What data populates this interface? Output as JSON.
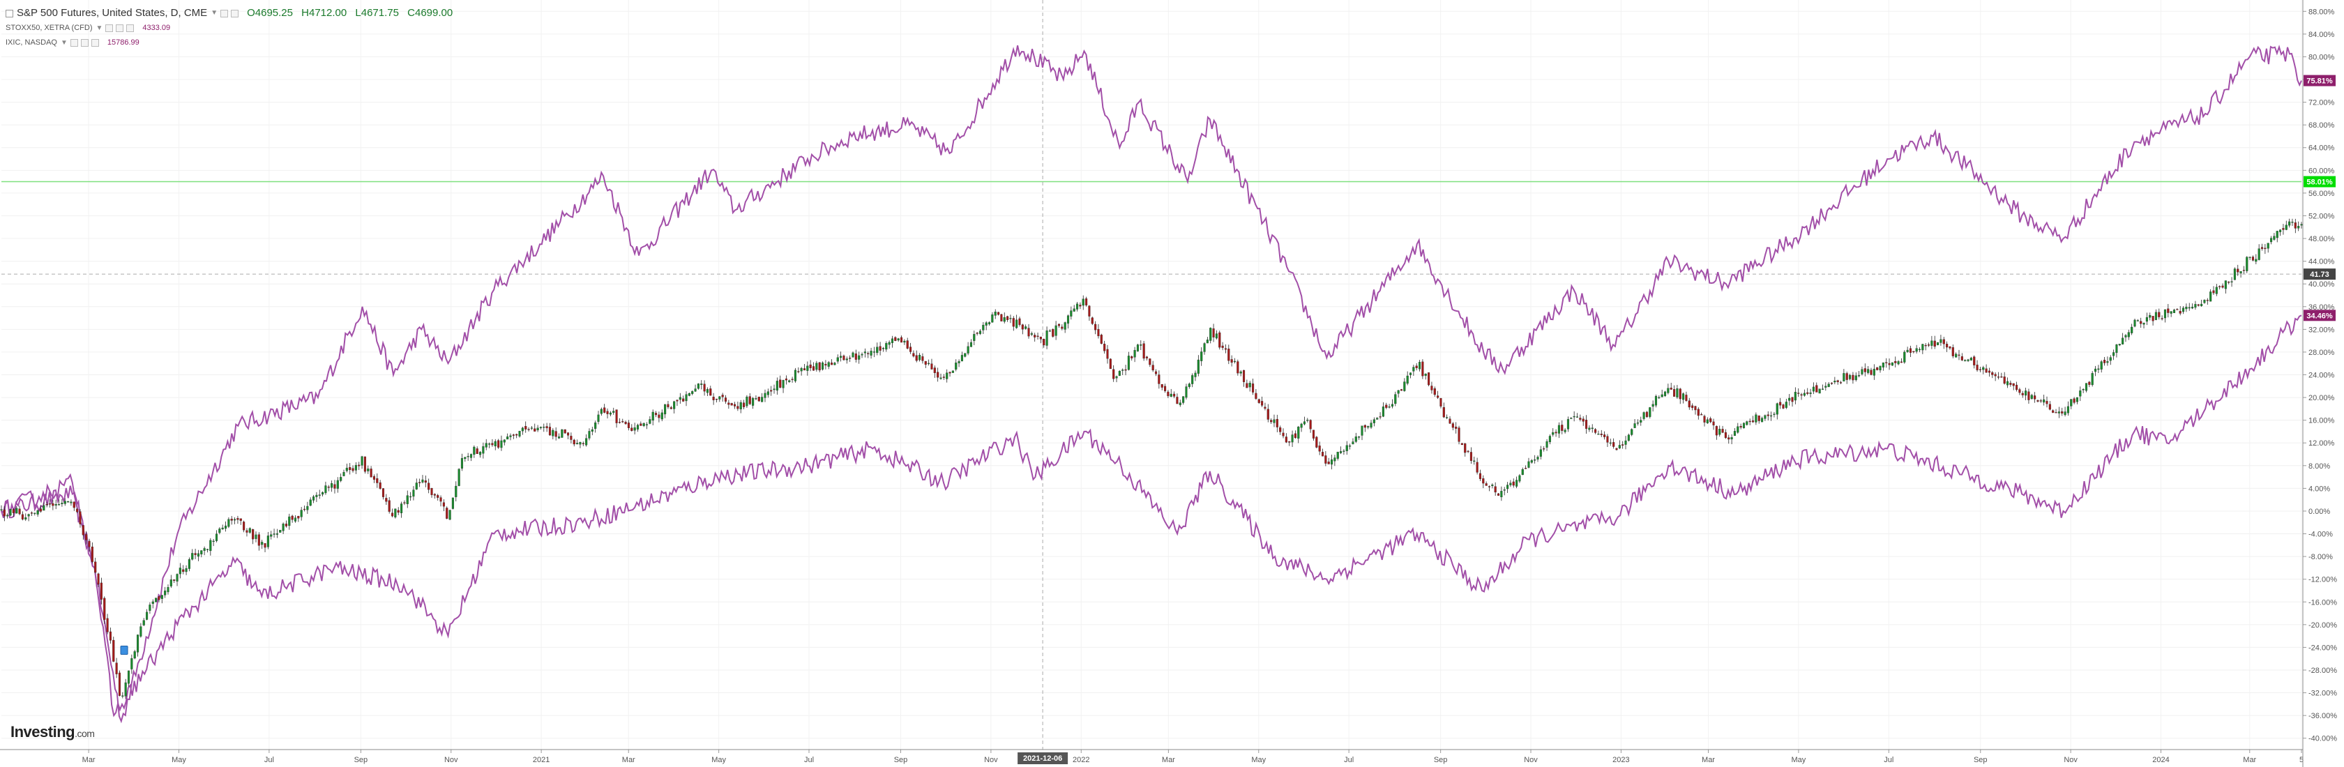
{
  "legend": {
    "main": {
      "title": "S&P 500 Futures, United States, D, CME",
      "open": "O4695.25",
      "high": "H4712.00",
      "low": "L4671.75",
      "close": "C4699.00"
    },
    "compare": [
      {
        "name": "STOXX50, XETRA (CFD)",
        "value": "4333.09"
      },
      {
        "name": "IXIC, NASDAQ",
        "value": "15786.99"
      }
    ]
  },
  "logo": {
    "text": "Investing",
    "suffix": ".com"
  },
  "colors": {
    "up": "#1a8a2e",
    "down": "#a31a1a",
    "compare": "#a24fa8",
    "green_line": "#7fe07f",
    "badge_main": "#00dd00",
    "badge_nasdaq": "#8e1f6b",
    "badge_stoxx": "#8e1f6b",
    "badge_price": "#444444",
    "crosshair_badge": "#555555"
  },
  "chart_data": {
    "type": "line",
    "y_axis": {
      "unit": "%",
      "min": -42,
      "max": 90,
      "tick_labels": [
        "88.00%",
        "84.00%",
        "80.00%",
        "76.00%",
        "72.00%",
        "68.00%",
        "64.00%",
        "60.00%",
        "56.00%",
        "52.00%",
        "48.00%",
        "44.00%",
        "40.00%",
        "36.00%",
        "32.00%",
        "28.00%",
        "24.00%",
        "20.00%",
        "16.00%",
        "12.00%",
        "8.00%",
        "4.00%",
        "0.00%",
        "-4.00%",
        "-8.00%",
        "-12.00%",
        "-16.00%",
        "-20.00%",
        "-24.00%",
        "-28.00%",
        "-32.00%",
        "-36.00%",
        "-40.00%"
      ],
      "tick_values": [
        88,
        84,
        80,
        76,
        72,
        68,
        64,
        60,
        56,
        52,
        48,
        44,
        40,
        36,
        32,
        28,
        24,
        20,
        16,
        12,
        8,
        4,
        0,
        -4,
        -8,
        -12,
        -16,
        -20,
        -24,
        -28,
        -32,
        -36,
        -40
      ]
    },
    "x_axis": {
      "start": "2020-01-02",
      "end": "2024-04-05",
      "tick_labels": [
        "Mar",
        "May",
        "Jul",
        "Sep",
        "Nov",
        "2021",
        "Mar",
        "May",
        "Jul",
        "Sep",
        "Nov",
        "2022",
        "Mar",
        "May",
        "Jul",
        "Sep",
        "Nov",
        "2023",
        "Mar",
        "May",
        "Jul",
        "Sep",
        "Nov",
        "2024",
        "Mar",
        "5"
      ],
      "tick_dates": [
        "2020-03-01",
        "2020-05-01",
        "2020-07-01",
        "2020-09-01",
        "2020-11-01",
        "2021-01-01",
        "2021-03-01",
        "2021-05-01",
        "2021-07-01",
        "2021-09-01",
        "2021-11-01",
        "2022-01-01",
        "2022-03-01",
        "2022-05-01",
        "2022-07-01",
        "2022-09-01",
        "2022-11-01",
        "2023-01-01",
        "2023-03-01",
        "2023-05-01",
        "2023-07-01",
        "2023-09-01",
        "2023-11-01",
        "2024-01-01",
        "2024-03-01",
        "2024-04-05"
      ]
    },
    "badges": [
      {
        "label": "75.81%",
        "value": 75.81
      },
      {
        "label": "58.01%",
        "value": 58.01
      },
      {
        "label": "41.73",
        "value": 41.73
      },
      {
        "label": "34.46%",
        "value": 34.46
      }
    ],
    "crosshair": {
      "x_label": "2021-12-06",
      "x": "2021-12-06",
      "y": 41.73
    },
    "horizontal_line": {
      "value": 58.01
    },
    "grid": "on",
    "series": [
      {
        "style": "candlestick",
        "key_points": [
          [
            "2020-01-02",
            0
          ],
          [
            "2020-01-20",
            -1
          ],
          [
            "2020-02-19",
            2
          ],
          [
            "2020-03-05",
            -10
          ],
          [
            "2020-03-23",
            -33
          ],
          [
            "2020-04-08",
            -18
          ],
          [
            "2020-04-30",
            -11
          ],
          [
            "2020-06-08",
            -1
          ],
          [
            "2020-06-26",
            -6
          ],
          [
            "2020-07-31",
            2
          ],
          [
            "2020-09-02",
            9
          ],
          [
            "2020-09-23",
            -1
          ],
          [
            "2020-10-12",
            6
          ],
          [
            "2020-10-30",
            -1
          ],
          [
            "2020-11-09",
            10
          ],
          [
            "2020-12-31",
            15
          ],
          [
            "2021-01-29",
            12
          ],
          [
            "2021-02-12",
            18
          ],
          [
            "2021-03-04",
            14
          ],
          [
            "2021-04-16",
            22
          ],
          [
            "2021-05-12",
            18
          ],
          [
            "2021-06-30",
            25
          ],
          [
            "2021-08-31",
            30
          ],
          [
            "2021-09-30",
            23
          ],
          [
            "2021-11-04",
            35
          ],
          [
            "2021-12-01",
            31
          ],
          [
            "2021-12-06",
            30
          ],
          [
            "2022-01-03",
            37
          ],
          [
            "2022-01-24",
            23
          ],
          [
            "2022-02-09",
            29
          ],
          [
            "2022-03-08",
            18
          ],
          [
            "2022-03-29",
            32
          ],
          [
            "2022-05-20",
            12
          ],
          [
            "2022-06-02",
            16
          ],
          [
            "2022-06-16",
            8
          ],
          [
            "2022-07-29",
            19
          ],
          [
            "2022-08-16",
            26
          ],
          [
            "2022-09-30",
            5
          ],
          [
            "2022-10-13",
            3
          ],
          [
            "2022-11-30",
            17
          ],
          [
            "2022-12-28",
            11
          ],
          [
            "2023-02-02",
            22
          ],
          [
            "2023-03-13",
            13
          ],
          [
            "2023-04-28",
            20
          ],
          [
            "2023-06-30",
            26
          ],
          [
            "2023-07-31",
            30
          ],
          [
            "2023-09-29",
            21
          ],
          [
            "2023-10-27",
            17
          ],
          [
            "2023-12-14",
            33
          ],
          [
            "2024-01-31",
            37
          ],
          [
            "2024-03-28",
            51
          ],
          [
            "2024-04-05",
            50
          ]
        ]
      },
      {
        "style": "line",
        "key_points": [
          [
            "2020-01-02",
            0
          ],
          [
            "2020-02-19",
            3
          ],
          [
            "2020-03-05",
            -10
          ],
          [
            "2020-03-23",
            -37
          ],
          [
            "2020-04-30",
            -4
          ],
          [
            "2020-06-10",
            15
          ],
          [
            "2020-08-03",
            20
          ],
          [
            "2020-09-02",
            36
          ],
          [
            "2020-09-23",
            24
          ],
          [
            "2020-10-12",
            32
          ],
          [
            "2020-10-30",
            26
          ],
          [
            "2020-11-30",
            39
          ],
          [
            "2020-12-31",
            47
          ],
          [
            "2021-02-12",
            59
          ],
          [
            "2021-03-08",
            45
          ],
          [
            "2021-04-26",
            60
          ],
          [
            "2021-05-12",
            53
          ],
          [
            "2021-06-30",
            62
          ],
          [
            "2021-07-30",
            66
          ],
          [
            "2021-09-07",
            68
          ],
          [
            "2021-10-04",
            63
          ],
          [
            "2021-11-19",
            82
          ],
          [
            "2021-12-20",
            76
          ],
          [
            "2022-01-03",
            81
          ],
          [
            "2022-01-27",
            64
          ],
          [
            "2022-02-09",
            72
          ],
          [
            "2022-03-14",
            58
          ],
          [
            "2022-03-29",
            69
          ],
          [
            "2022-05-20",
            43
          ],
          [
            "2022-06-16",
            27
          ],
          [
            "2022-08-16",
            47
          ],
          [
            "2022-09-30",
            28
          ],
          [
            "2022-10-13",
            25
          ],
          [
            "2022-11-30",
            39
          ],
          [
            "2022-12-28",
            29
          ],
          [
            "2023-02-02",
            44
          ],
          [
            "2023-03-13",
            40
          ],
          [
            "2023-04-28",
            48
          ],
          [
            "2023-06-30",
            62
          ],
          [
            "2023-07-31",
            66
          ],
          [
            "2023-09-29",
            52
          ],
          [
            "2023-10-27",
            48
          ],
          [
            "2023-12-14",
            65
          ],
          [
            "2024-01-31",
            70
          ],
          [
            "2024-03-01",
            80
          ],
          [
            "2024-03-28",
            80.5
          ],
          [
            "2024-04-05",
            75.81
          ]
        ]
      },
      {
        "style": "line",
        "key_points": [
          [
            "2020-01-02",
            0
          ],
          [
            "2020-02-19",
            5
          ],
          [
            "2020-03-05",
            -10
          ],
          [
            "2020-03-18",
            -36
          ],
          [
            "2020-04-30",
            -20
          ],
          [
            "2020-06-08",
            -9
          ],
          [
            "2020-06-26",
            -15
          ],
          [
            "2020-08-14",
            -10
          ],
          [
            "2020-09-30",
            -13
          ],
          [
            "2020-10-30",
            -22
          ],
          [
            "2020-11-30",
            -4
          ],
          [
            "2021-01-29",
            -2
          ],
          [
            "2021-03-08",
            1
          ],
          [
            "2021-04-30",
            6
          ],
          [
            "2021-06-30",
            8
          ],
          [
            "2021-08-13",
            11
          ],
          [
            "2021-09-30",
            5
          ],
          [
            "2021-11-17",
            13
          ],
          [
            "2021-12-01",
            6
          ],
          [
            "2022-01-03",
            14
          ],
          [
            "2022-01-28",
            8
          ],
          [
            "2022-03-07",
            -4
          ],
          [
            "2022-03-29",
            7
          ],
          [
            "2022-05-12",
            -8
          ],
          [
            "2022-06-16",
            -12
          ],
          [
            "2022-08-16",
            -4
          ],
          [
            "2022-09-29",
            -14
          ],
          [
            "2022-10-31",
            -5
          ],
          [
            "2022-12-30",
            -1
          ],
          [
            "2023-02-02",
            8
          ],
          [
            "2023-03-20",
            3
          ],
          [
            "2023-04-28",
            9
          ],
          [
            "2023-06-30",
            11
          ],
          [
            "2023-09-29",
            3
          ],
          [
            "2023-10-27",
            0
          ],
          [
            "2023-12-14",
            14
          ],
          [
            "2024-01-05",
            12
          ],
          [
            "2024-01-31",
            18
          ],
          [
            "2024-03-01",
            25
          ],
          [
            "2024-04-05",
            34.46
          ]
        ]
      }
    ]
  }
}
